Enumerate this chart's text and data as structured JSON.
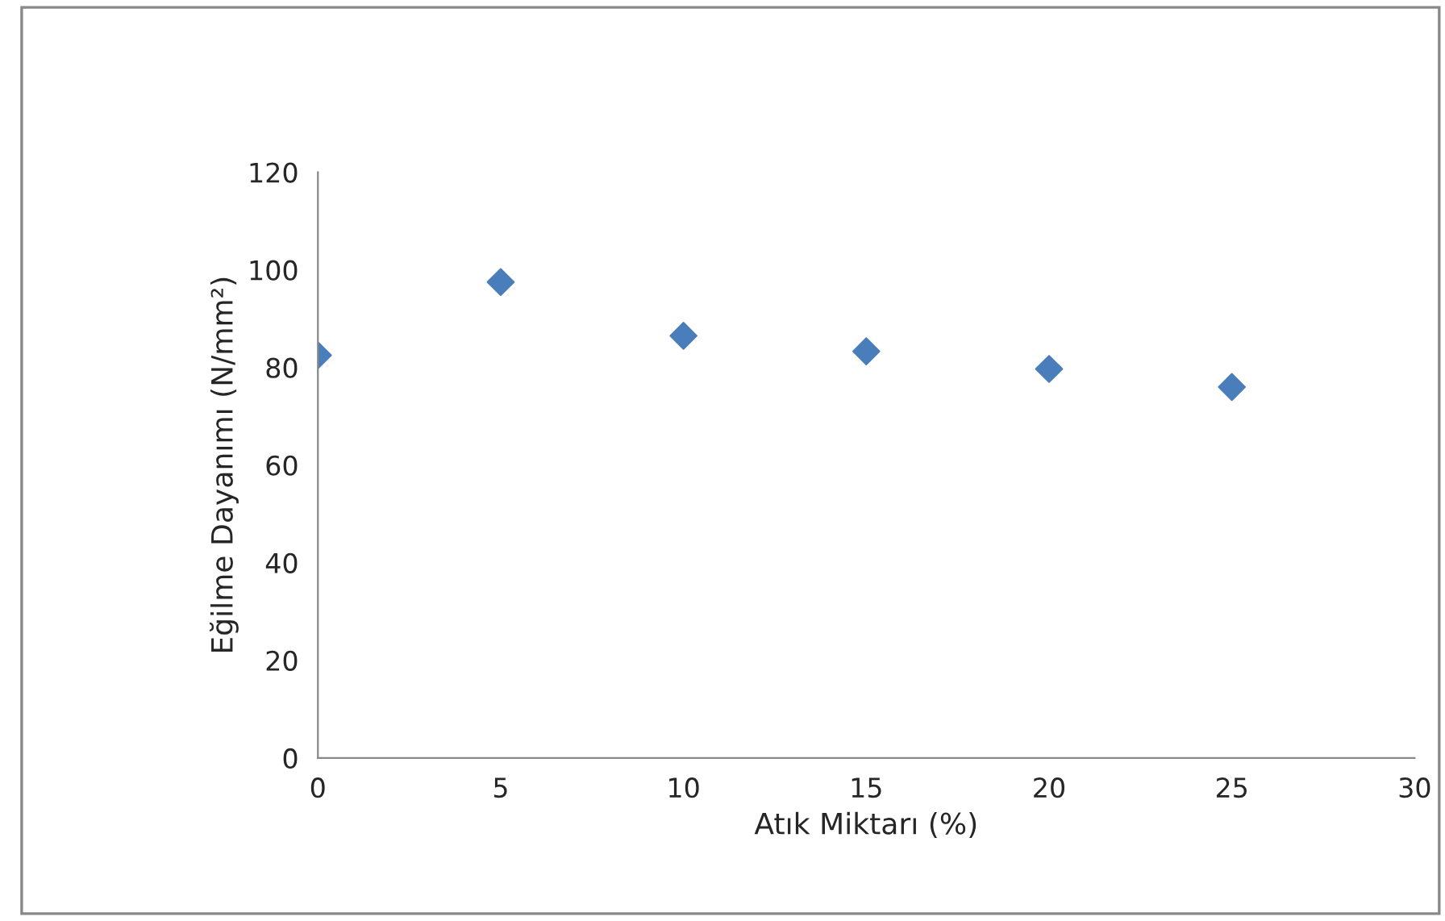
{
  "chart_data": {
    "type": "scatter",
    "xlabel": "Atık Miktarı (%)",
    "ylabel": "Eğilme Dayanımı (N/mm²)",
    "x": [
      0,
      5,
      10,
      15,
      20,
      25
    ],
    "series": [
      {
        "color": "#4a7ebb",
        "values": [
          82.5,
          97.5,
          86.5,
          83.3,
          79.7,
          76
        ]
      }
    ],
    "xlim": [
      0,
      30
    ],
    "xticks": [
      0,
      5,
      10,
      15,
      20,
      25,
      30
    ],
    "ylim": [
      0,
      120
    ],
    "yticks": [
      0,
      20,
      40,
      60,
      80,
      100,
      120
    ],
    "grid": false,
    "legend": false,
    "marker": "diamond"
  }
}
